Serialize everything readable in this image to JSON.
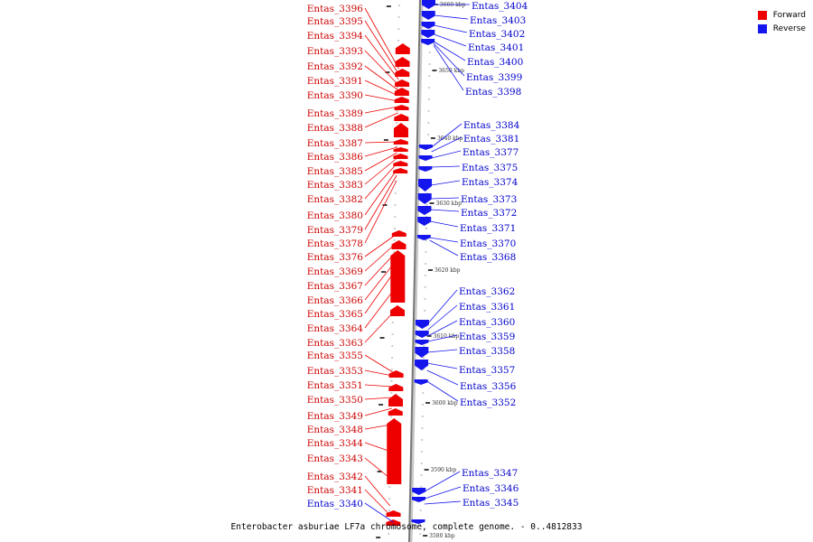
{
  "legend": {
    "forward_label": "Forward",
    "reverse_label": "Reverse",
    "forward_color": "#ee0000",
    "reverse_color": "#1515ee"
  },
  "caption": "Enterobacter asburiae LF7a chromosome, complete genome. - 0..4812833",
  "ticks": [
    "3660 kbp",
    "3650 kbp",
    "3640 kbp",
    "3630 kbp",
    "3620 kbp",
    "3610 kbp",
    "3600 kbp",
    "3590 kbp",
    "3580 kbp"
  ],
  "forward_labels": [
    "Entas_3396",
    "Entas_3395",
    "Entas_3394",
    "Entas_3393",
    "Entas_3392",
    "Entas_3391",
    "Entas_3390",
    "Entas_3389",
    "Entas_3388",
    "Entas_3387",
    "Entas_3386",
    "Entas_3385",
    "Entas_3383",
    "Entas_3382",
    "Entas_3380",
    "Entas_3379",
    "Entas_3378",
    "Entas_3376",
    "Entas_3369",
    "Entas_3367",
    "Entas_3366",
    "Entas_3365",
    "Entas_3364",
    "Entas_3363",
    "Entas_3355",
    "Entas_3353",
    "Entas_3351",
    "Entas_3350",
    "Entas_3349",
    "Entas_3348",
    "Entas_3344",
    "Entas_3343",
    "Entas_3342",
    "Entas_3341"
  ],
  "reverse_labels": [
    "Entas_3404",
    "Entas_3403",
    "Entas_3402",
    "Entas_3401",
    "Entas_3400",
    "Entas_3399",
    "Entas_3398",
    "Entas_3384",
    "Entas_3381",
    "Entas_3377",
    "Entas_3375",
    "Entas_3374",
    "Entas_3373",
    "Entas_3372",
    "Entas_3371",
    "Entas_3370",
    "Entas_3368",
    "Entas_3362",
    "Entas_3361",
    "Entas_3360",
    "Entas_3359",
    "Entas_3358",
    "Entas_3357",
    "Entas_3356",
    "Entas_3352",
    "Entas_3347",
    "Entas_3346",
    "Entas_3345"
  ],
  "extra_reverse_left_label": "Entas_3340"
}
